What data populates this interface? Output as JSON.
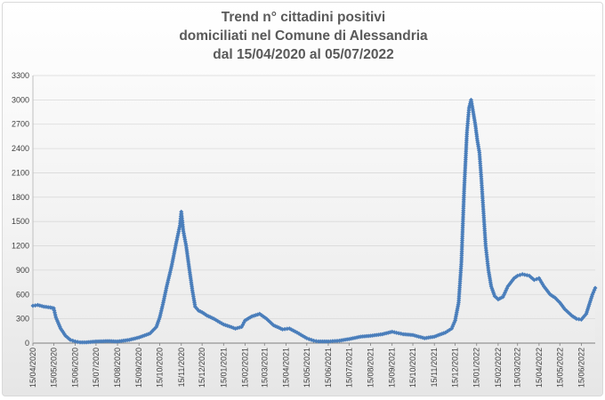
{
  "chart_data": {
    "type": "line",
    "title_lines": [
      "Trend n° cittadini positivi",
      "domiciliati nel Comune di Alessandria",
      "dal 15/04/2020 al 05/07/2022"
    ],
    "xlabel": "",
    "ylabel": "",
    "ylim": [
      0,
      3300
    ],
    "y_ticks": [
      "0",
      "300",
      "600",
      "900",
      "1200",
      "1500",
      "1800",
      "2100",
      "2400",
      "2700",
      "3000",
      "3300"
    ],
    "x_tick_labels": [
      "15/04/2020",
      "15/05/2020",
      "15/06/2020",
      "15/07/2020",
      "15/08/2020",
      "15/09/2020",
      "15/10/2020",
      "15/11/2020",
      "15/12/2020",
      "15/01/2021",
      "15/02/2021",
      "15/03/2021",
      "15/04/2021",
      "15/05/2021",
      "15/06/2021",
      "15/07/2021",
      "15/08/2021",
      "15/09/2021",
      "15/10/2021",
      "15/11/2021",
      "15/12/2021",
      "15/01/2022",
      "15/02/2022",
      "15/03/2022",
      "15/04/2022",
      "15/05/2022",
      "15/06/2022"
    ],
    "grid": true,
    "legend": "none",
    "series_color": "#4a7ebb",
    "series": [
      {
        "x": [
          "15/04/2020",
          "22/04/2020",
          "01/05/2020",
          "10/05/2020",
          "15/05/2020",
          "18/05/2020",
          "25/05/2020",
          "01/06/2020",
          "08/06/2020",
          "15/06/2020",
          "22/06/2020",
          "01/07/2020",
          "15/07/2020",
          "01/08/2020",
          "15/08/2020",
          "01/09/2020",
          "15/09/2020",
          "01/10/2020",
          "10/10/2020",
          "15/10/2020",
          "20/10/2020",
          "25/10/2020",
          "01/11/2020",
          "08/11/2020",
          "13/11/2020",
          "15/11/2020",
          "18/11/2020",
          "22/11/2020",
          "26/11/2020",
          "01/12/2020",
          "05/12/2020",
          "10/12/2020",
          "15/12/2020",
          "22/12/2020",
          "01/01/2021",
          "15/01/2021",
          "01/02/2021",
          "10/02/2021",
          "15/02/2021",
          "25/02/2021",
          "08/03/2021",
          "18/03/2021",
          "28/03/2021",
          "10/04/2021",
          "20/04/2021",
          "01/05/2021",
          "15/05/2021",
          "25/05/2021",
          "01/06/2021",
          "15/06/2021",
          "01/07/2021",
          "15/07/2021",
          "01/08/2021",
          "15/08/2021",
          "01/09/2021",
          "15/09/2021",
          "01/10/2021",
          "15/10/2021",
          "01/11/2021",
          "15/11/2021",
          "01/12/2021",
          "10/12/2021",
          "15/12/2021",
          "20/12/2021",
          "24/12/2021",
          "28/12/2021",
          "01/01/2022",
          "04/01/2022",
          "07/01/2022",
          "10/01/2022",
          "13/01/2022",
          "16/01/2022",
          "19/01/2022",
          "22/01/2022",
          "25/01/2022",
          "28/01/2022",
          "01/02/2022",
          "05/02/2022",
          "10/02/2022",
          "15/02/2022",
          "22/02/2022",
          "01/03/2022",
          "10/03/2022",
          "15/03/2022",
          "22/03/2022",
          "01/04/2022",
          "08/04/2022",
          "15/04/2022",
          "22/04/2022",
          "01/05/2022",
          "08/05/2022",
          "15/05/2022",
          "22/05/2022",
          "01/06/2022",
          "08/06/2022",
          "15/06/2022",
          "22/06/2022",
          "01/07/2022",
          "05/07/2022"
        ],
        "y": [
          460,
          470,
          450,
          440,
          430,
          320,
          180,
          90,
          40,
          20,
          10,
          10,
          20,
          25,
          20,
          40,
          70,
          120,
          200,
          320,
          500,
          700,
          950,
          1250,
          1450,
          1620,
          1380,
          1200,
          950,
          650,
          450,
          400,
          380,
          340,
          300,
          230,
          180,
          200,
          280,
          330,
          360,
          300,
          220,
          170,
          180,
          130,
          60,
          30,
          20,
          20,
          30,
          50,
          80,
          90,
          110,
          140,
          110,
          100,
          60,
          80,
          130,
          180,
          280,
          500,
          1000,
          1900,
          2600,
          2900,
          3000,
          2850,
          2700,
          2500,
          2350,
          2000,
          1600,
          1200,
          900,
          700,
          580,
          540,
          570,
          700,
          800,
          830,
          850,
          830,
          780,
          800,
          700,
          600,
          560,
          500,
          420,
          340,
          300,
          290,
          360,
          600,
          680
        ]
      }
    ]
  }
}
